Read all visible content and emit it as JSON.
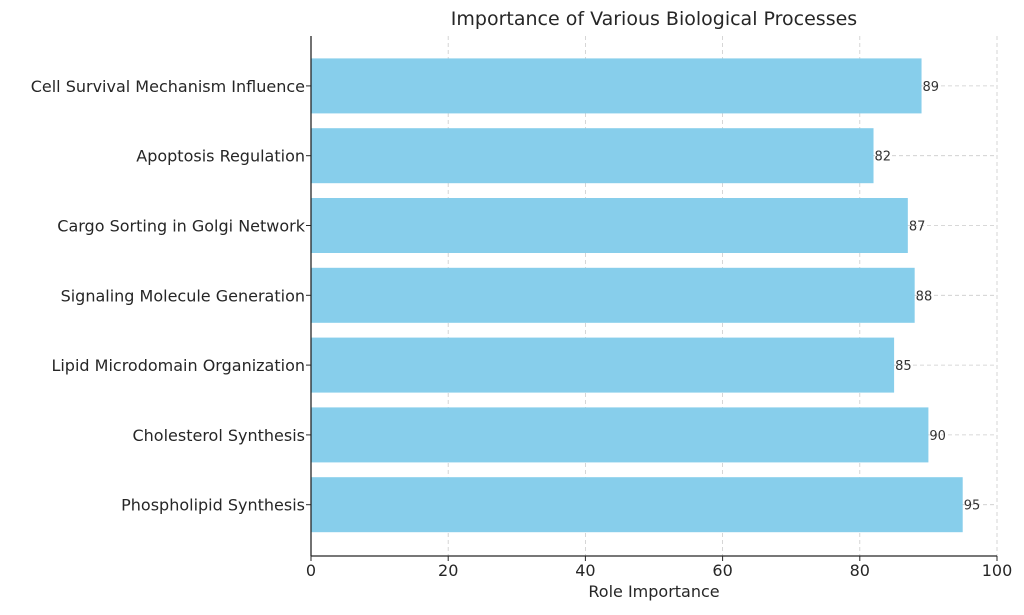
{
  "chart_data": {
    "type": "bar",
    "orientation": "horizontal",
    "title": "Importance of Various Biological Processes",
    "xlabel": "Role Importance",
    "ylabel": "",
    "xlim": [
      0,
      100
    ],
    "x_ticks": [
      0,
      20,
      40,
      60,
      80,
      100
    ],
    "grid": true,
    "categories": [
      "Phospholipid Synthesis",
      "Cholesterol Synthesis",
      "Lipid Microdomain Organization",
      "Signaling Molecule Generation",
      "Cargo Sorting in Golgi Network",
      "Apoptosis Regulation",
      "Cell Survival Mechanism Influence"
    ],
    "values": [
      95,
      90,
      85,
      88,
      87,
      82,
      89
    ],
    "bar_color": "#87ceeb",
    "grid_color": "#cccccc"
  }
}
